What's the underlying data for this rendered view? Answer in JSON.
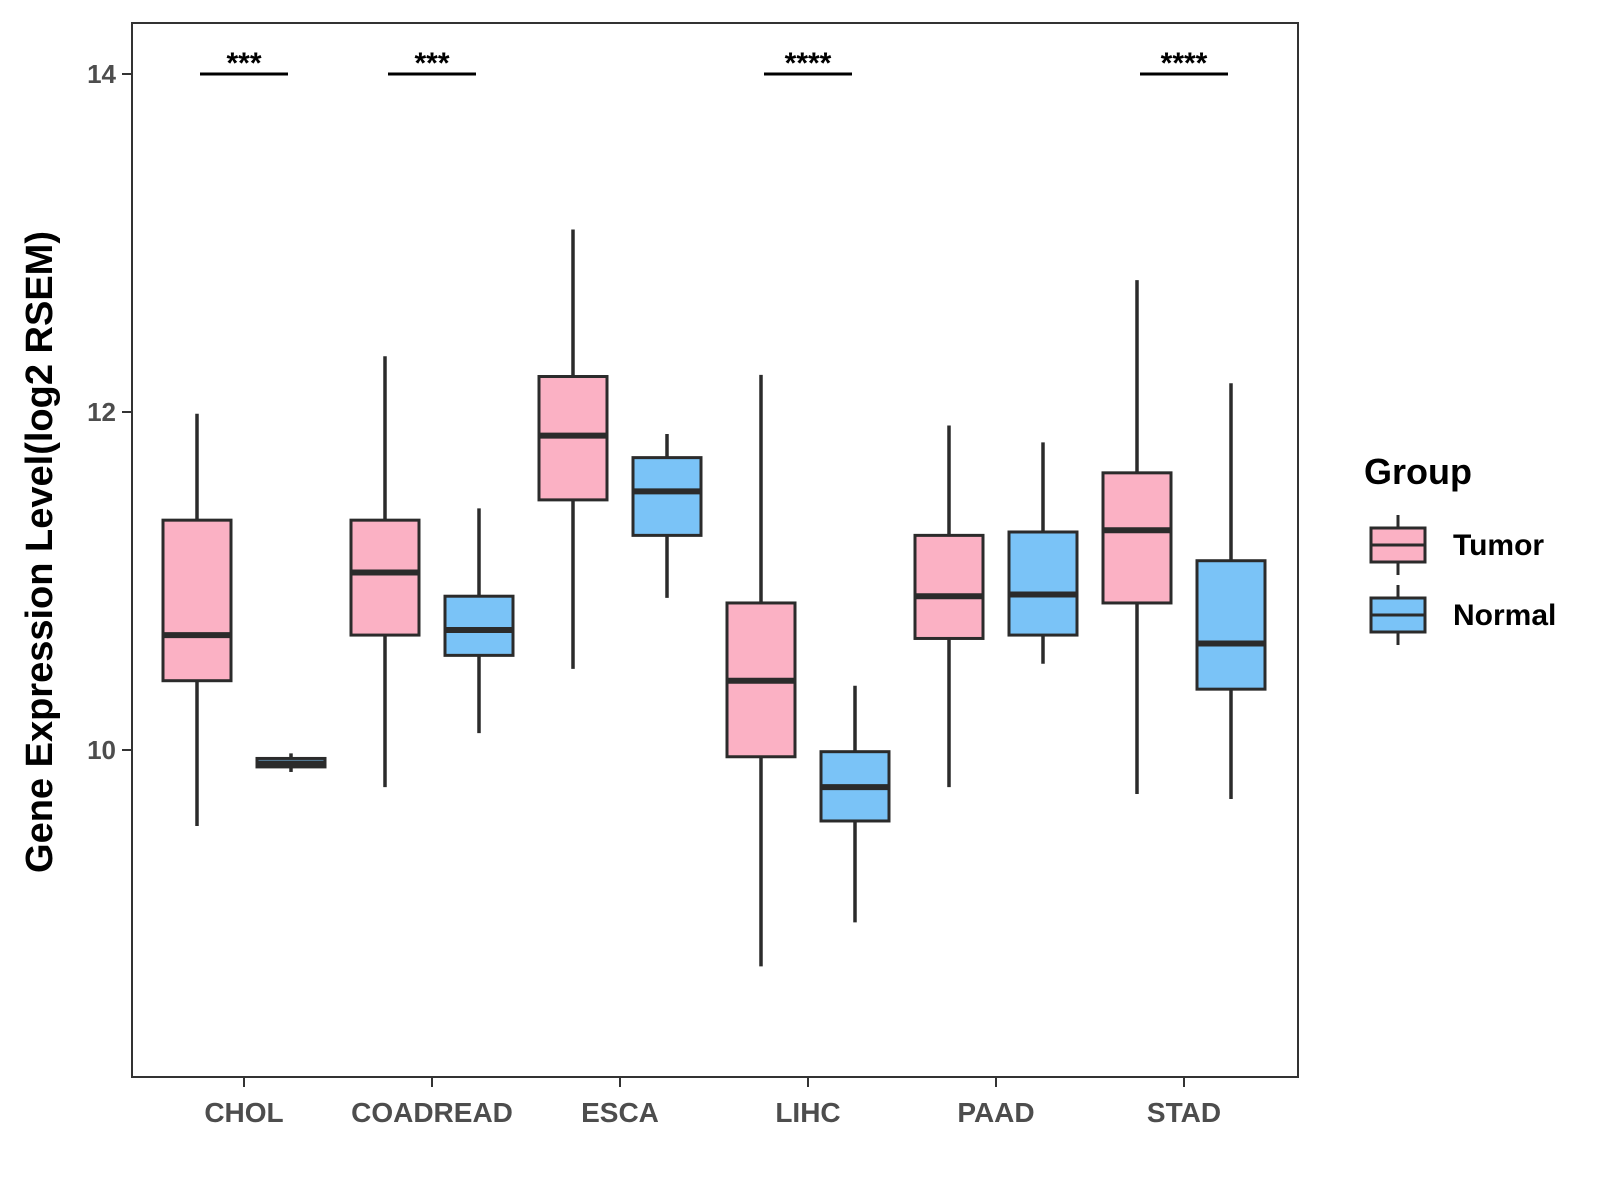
{
  "chart_data": {
    "type": "boxplot",
    "title": "",
    "xlabel": "",
    "ylabel": "Gene Expression Level(log2 RSEM)",
    "ylim": [
      7.9,
      14.3
    ],
    "yticks": [
      10,
      12,
      14
    ],
    "ytick_labels": [
      "10",
      "12",
      "14"
    ],
    "grid": false,
    "legend": {
      "title": "Group",
      "position": "right",
      "entries": [
        {
          "label": "Tumor",
          "color": "#FBB1C4"
        },
        {
          "label": "Normal",
          "color": "#7AC3F7"
        }
      ]
    },
    "categories": [
      "CHOL",
      "COADREAD",
      "ESCA",
      "LIHC",
      "PAAD",
      "STAD"
    ],
    "series": [
      {
        "name": "Tumor",
        "color": "#FBB1C4",
        "boxes": [
          {
            "category": "CHOL",
            "min": 9.55,
            "q1": 10.41,
            "median": 10.68,
            "q3": 11.36,
            "max": 11.99
          },
          {
            "category": "COADREAD",
            "min": 9.78,
            "q1": 10.68,
            "median": 11.05,
            "q3": 11.36,
            "max": 12.33
          },
          {
            "category": "ESCA",
            "min": 10.48,
            "q1": 11.48,
            "median": 11.86,
            "q3": 12.21,
            "max": 13.08
          },
          {
            "category": "LIHC",
            "min": 8.72,
            "q1": 9.96,
            "median": 10.41,
            "q3": 10.87,
            "max": 12.22
          },
          {
            "category": "PAAD",
            "min": 9.78,
            "q1": 10.66,
            "median": 10.91,
            "q3": 11.27,
            "max": 11.92
          },
          {
            "category": "STAD",
            "min": 9.74,
            "q1": 10.87,
            "median": 11.3,
            "q3": 11.64,
            "max": 12.78
          }
        ]
      },
      {
        "name": "Normal",
        "color": "#7AC3F7",
        "boxes": [
          {
            "category": "CHOL",
            "min": 9.87,
            "q1": 9.9,
            "median": 9.92,
            "q3": 9.95,
            "max": 9.98
          },
          {
            "category": "COADREAD",
            "min": 10.1,
            "q1": 10.56,
            "median": 10.71,
            "q3": 10.91,
            "max": 11.43
          },
          {
            "category": "ESCA",
            "min": 10.9,
            "q1": 11.27,
            "median": 11.53,
            "q3": 11.73,
            "max": 11.87
          },
          {
            "category": "LIHC",
            "min": 8.98,
            "q1": 9.58,
            "median": 9.78,
            "q3": 9.99,
            "max": 10.38
          },
          {
            "category": "PAAD",
            "min": 10.51,
            "q1": 10.68,
            "median": 10.92,
            "q3": 11.29,
            "max": 11.82
          },
          {
            "category": "STAD",
            "min": 9.71,
            "q1": 10.36,
            "median": 10.63,
            "q3": 11.12,
            "max": 12.17
          }
        ]
      }
    ],
    "significance": [
      {
        "category": "CHOL",
        "label": "***",
        "y": 14
      },
      {
        "category": "COADREAD",
        "label": "***",
        "y": 14
      },
      {
        "category": "LIHC",
        "label": "****",
        "y": 14
      },
      {
        "category": "STAD",
        "label": "****",
        "y": 14
      }
    ]
  }
}
